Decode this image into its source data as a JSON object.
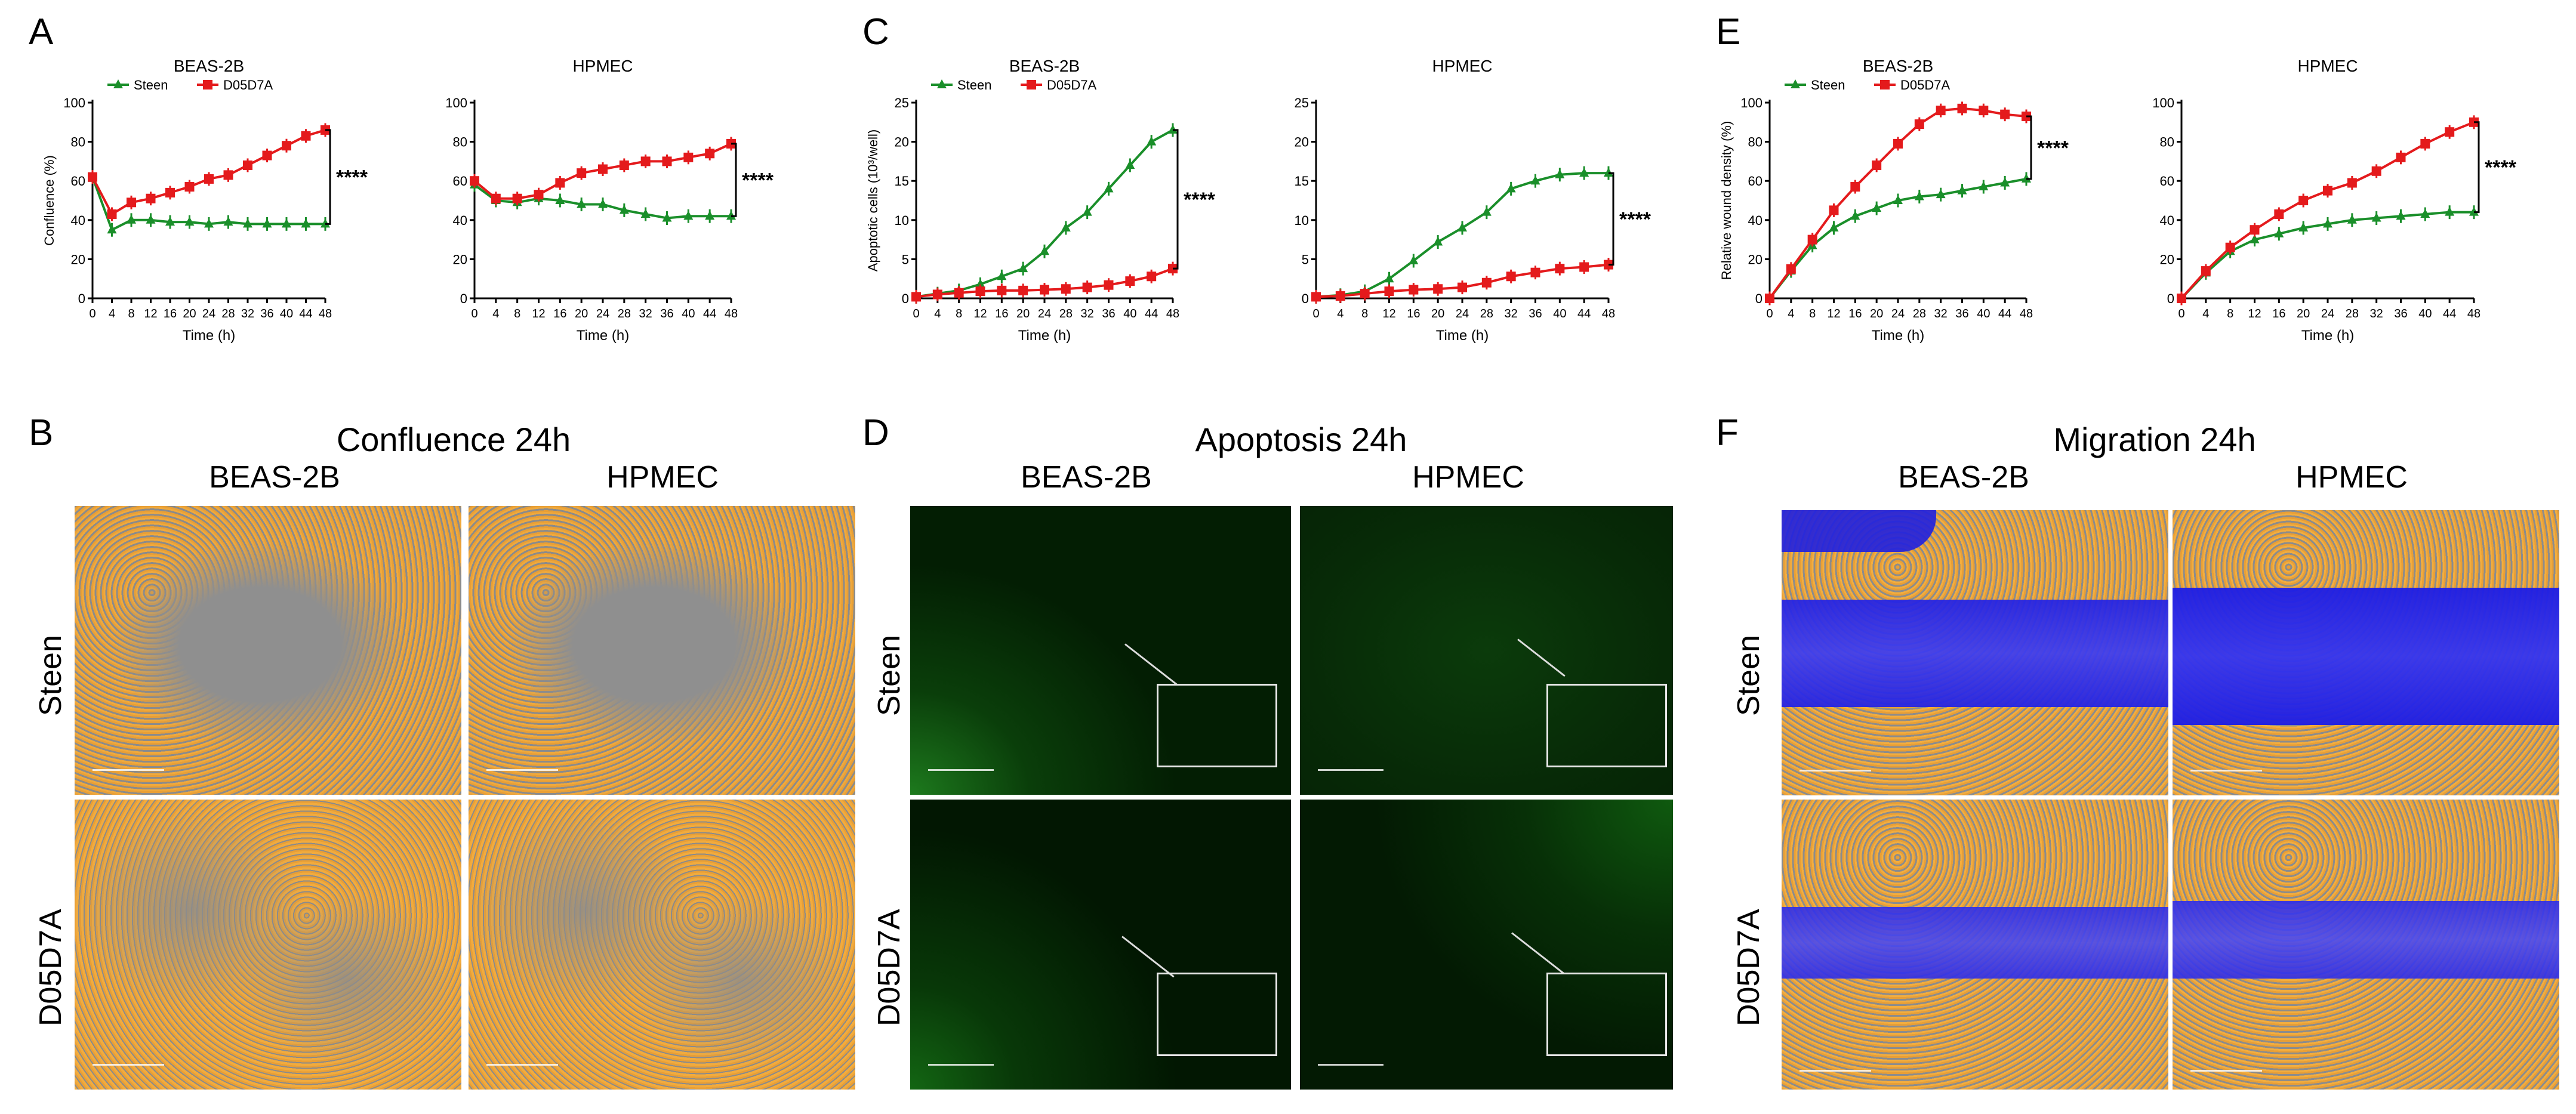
{
  "panels": {
    "A": "A",
    "B": "B",
    "C": "C",
    "D": "D",
    "E": "E",
    "F": "F"
  },
  "colors": {
    "steen": "#1a8f2a",
    "d05d7a": "#e41a1c",
    "axis": "#000000"
  },
  "legend": {
    "steen": "Steen",
    "d05d7a": "D05D7A"
  },
  "significance": "****",
  "chart_data": [
    {
      "id": "A1",
      "type": "line",
      "title": "BEAS-2B",
      "xlabel": "Time (h)",
      "ylabel": "Confluence (%)",
      "xlim": [
        0,
        48
      ],
      "ylim": [
        0,
        100
      ],
      "xticks": [
        0,
        4,
        8,
        12,
        16,
        20,
        24,
        28,
        32,
        36,
        40,
        44,
        48
      ],
      "yticks": [
        0,
        20,
        40,
        60,
        80,
        100
      ],
      "x": [
        0,
        4,
        8,
        12,
        16,
        20,
        24,
        28,
        32,
        36,
        40,
        44,
        48
      ],
      "series": [
        {
          "name": "Steen",
          "values": [
            62,
            35,
            40,
            40,
            39,
            39,
            38,
            39,
            38,
            38,
            38,
            38,
            38
          ]
        },
        {
          "name": "D05D7A",
          "values": [
            62,
            43,
            49,
            51,
            54,
            57,
            61,
            63,
            68,
            73,
            78,
            83,
            86
          ]
        }
      ],
      "legend": true
    },
    {
      "id": "A2",
      "type": "line",
      "title": "HPMEC",
      "xlabel": "Time (h)",
      "ylabel": "",
      "xlim": [
        0,
        48
      ],
      "ylim": [
        0,
        100
      ],
      "xticks": [
        0,
        4,
        8,
        12,
        16,
        20,
        24,
        28,
        32,
        36,
        40,
        44,
        48
      ],
      "yticks": [
        0,
        20,
        40,
        60,
        80,
        100
      ],
      "x": [
        0,
        4,
        8,
        12,
        16,
        20,
        24,
        28,
        32,
        36,
        40,
        44,
        48
      ],
      "series": [
        {
          "name": "Steen",
          "values": [
            58,
            50,
            49,
            51,
            50,
            48,
            48,
            45,
            43,
            41,
            42,
            42,
            42
          ]
        },
        {
          "name": "D05D7A",
          "values": [
            60,
            51,
            51,
            53,
            59,
            64,
            66,
            68,
            70,
            70,
            72,
            74,
            79
          ]
        }
      ],
      "legend": false
    },
    {
      "id": "C1",
      "type": "line",
      "title": "BEAS-2B",
      "xlabel": "Time (h)",
      "ylabel": "Apoptotic cells (10³/well)",
      "xlim": [
        0,
        48
      ],
      "ylim": [
        0,
        25
      ],
      "xticks": [
        0,
        4,
        8,
        12,
        16,
        20,
        24,
        28,
        32,
        36,
        40,
        44,
        48
      ],
      "yticks": [
        0,
        5,
        10,
        15,
        20,
        25
      ],
      "x": [
        0,
        4,
        8,
        12,
        16,
        20,
        24,
        28,
        32,
        36,
        40,
        44,
        48
      ],
      "series": [
        {
          "name": "Steen",
          "values": [
            0.2,
            0.6,
            1.0,
            1.8,
            2.8,
            3.8,
            6.0,
            9.0,
            11.0,
            14.0,
            17.0,
            20.0,
            21.5
          ]
        },
        {
          "name": "D05D7A",
          "values": [
            0.2,
            0.5,
            0.7,
            0.9,
            1.0,
            1.0,
            1.1,
            1.2,
            1.4,
            1.7,
            2.2,
            2.8,
            3.8
          ]
        }
      ],
      "legend": true
    },
    {
      "id": "C2",
      "type": "line",
      "title": "HPMEC",
      "xlabel": "Time (h)",
      "ylabel": "",
      "xlim": [
        0,
        48
      ],
      "ylim": [
        0,
        25
      ],
      "xticks": [
        0,
        4,
        8,
        12,
        16,
        20,
        24,
        28,
        32,
        36,
        40,
        44,
        48
      ],
      "yticks": [
        0,
        5,
        10,
        15,
        20,
        25
      ],
      "x": [
        0,
        4,
        8,
        12,
        16,
        20,
        24,
        28,
        32,
        36,
        40,
        44,
        48
      ],
      "series": [
        {
          "name": "Steen",
          "values": [
            0.2,
            0.4,
            0.9,
            2.5,
            4.8,
            7.2,
            9.0,
            11.0,
            14.0,
            15.0,
            15.8,
            16.0,
            16.0
          ]
        },
        {
          "name": "D05D7A",
          "values": [
            0.2,
            0.3,
            0.6,
            0.9,
            1.1,
            1.2,
            1.4,
            2.0,
            2.8,
            3.3,
            3.8,
            4.0,
            4.3
          ]
        }
      ],
      "legend": false
    },
    {
      "id": "E1",
      "type": "line",
      "title": "BEAS-2B",
      "xlabel": "Time (h)",
      "ylabel": "Relative wound density (%)",
      "xlim": [
        0,
        48
      ],
      "ylim": [
        0,
        100
      ],
      "xticks": [
        0,
        4,
        8,
        12,
        16,
        20,
        24,
        28,
        32,
        36,
        40,
        44,
        48
      ],
      "yticks": [
        0,
        20,
        40,
        60,
        80,
        100
      ],
      "x": [
        0,
        4,
        8,
        12,
        16,
        20,
        24,
        28,
        32,
        36,
        40,
        44,
        48
      ],
      "series": [
        {
          "name": "Steen",
          "values": [
            0,
            14,
            27,
            36,
            42,
            46,
            50,
            52,
            53,
            55,
            57,
            59,
            61
          ]
        },
        {
          "name": "D05D7A",
          "values": [
            0,
            15,
            30,
            45,
            57,
            68,
            79,
            89,
            96,
            97,
            96,
            94,
            93
          ]
        }
      ],
      "legend": true
    },
    {
      "id": "E2",
      "type": "line",
      "title": "HPMEC",
      "xlabel": "Time (h)",
      "ylabel": "",
      "xlim": [
        0,
        48
      ],
      "ylim": [
        0,
        100
      ],
      "xticks": [
        0,
        4,
        8,
        12,
        16,
        20,
        24,
        28,
        32,
        36,
        40,
        44,
        48
      ],
      "yticks": [
        0,
        20,
        40,
        60,
        80,
        100
      ],
      "x": [
        0,
        4,
        8,
        12,
        16,
        20,
        24,
        28,
        32,
        36,
        40,
        44,
        48
      ],
      "series": [
        {
          "name": "Steen",
          "values": [
            0,
            13,
            24,
            30,
            33,
            36,
            38,
            40,
            41,
            42,
            43,
            44,
            44
          ]
        },
        {
          "name": "D05D7A",
          "values": [
            0,
            14,
            26,
            35,
            43,
            50,
            55,
            59,
            65,
            72,
            79,
            85,
            90
          ]
        }
      ],
      "legend": false
    }
  ],
  "images": {
    "B": {
      "title": "Confluence 24h",
      "cols": [
        "BEAS-2B",
        "HPMEC"
      ],
      "rows": [
        "Steen",
        "D05D7A"
      ]
    },
    "D": {
      "title": "Apoptosis 24h",
      "cols": [
        "BEAS-2B",
        "HPMEC"
      ],
      "rows": [
        "Steen",
        "D05D7A"
      ]
    },
    "F": {
      "title": "Migration 24h",
      "cols": [
        "BEAS-2B",
        "HPMEC"
      ],
      "rows": [
        "Steen",
        "D05D7A"
      ]
    }
  }
}
